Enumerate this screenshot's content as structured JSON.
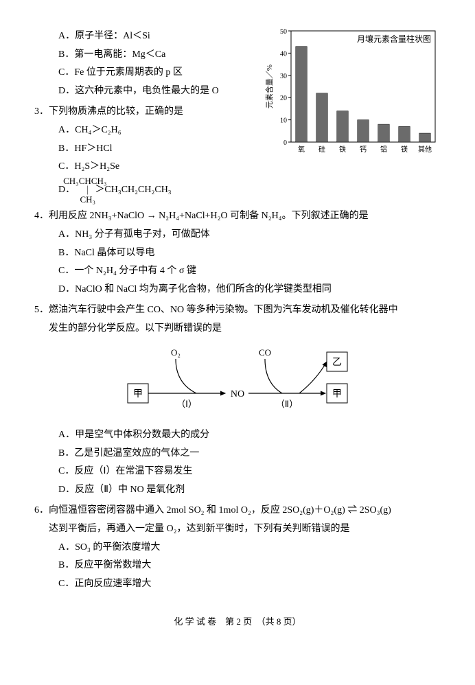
{
  "q2_tail": {
    "A": "A．原子半径：Al＜Si",
    "B": "B．第一电离能：Mg＜Ca",
    "C": "C．Fe 位于元素周期表的 p 区",
    "D": "D．这六种元素中，电负性最大的是 O"
  },
  "q3": {
    "stem_num": "3．",
    "stem": "下列物质沸点的比较，正确的是",
    "A": "A．CH₄＞C₂H₆",
    "B": "B．HF＞HCl",
    "C": "C．H₂S＞H₂Se",
    "D_prefix": "D．",
    "D_top": "CH₃CHCH₃",
    "D_mid": "｜",
    "D_bot": "CH₃",
    "D_right": "＞CH₃CH₂CH₂CH₃"
  },
  "q4": {
    "stem_num": "4．",
    "stem": "利用反应 2NH₃+NaClO → N₂H₄+NaCl+H₂O 可制备 N₂H₄。下列叙述正确的是",
    "A": "A．NH₃ 分子有孤电子对，可做配体",
    "B": "B．NaCl 晶体可以导电",
    "C": "C．一个 N₂H₄ 分子中有 4 个 σ 键",
    "D": "D．NaClO 和 NaCl 均为离子化合物，他们所含的化学键类型相同"
  },
  "q5": {
    "stem_num": "5．",
    "stem1": "燃油汽车行驶中会产生 CO、NO 等多种污染物。下图为汽车发动机及催化转化器中",
    "stem2": "发生的部分化学反应。以下判断错误的是",
    "A": "A．甲是空气中体积分数最大的成分",
    "B": "B．乙是引起温室效应的气体之一",
    "C": "C．反应（Ⅰ）在常温下容易发生",
    "D": "D．反应（Ⅱ）中 NO 是氧化剂",
    "diagram": {
      "o2": "O₂",
      "co": "CO",
      "no": "NO",
      "jia": "甲",
      "yi": "乙",
      "r1": "（Ⅰ）",
      "r2": "（Ⅱ）"
    }
  },
  "q6": {
    "stem_num": "6．",
    "stem1": "向恒温恒容密闭容器中通入 2mol SO₂ 和 1mol O₂，反应 2SO₂(g)＋O₂(g) ⇌ 2SO₃(g)",
    "stem2": "达到平衡后，再通入一定量 O₂，达到新平衡时，下列有关判断错误的是",
    "A": "A．SO₃ 的平衡浓度增大",
    "B": "B．反应平衡常数增大",
    "C": "C．正向反应速率增大"
  },
  "chart": {
    "title": "月壤元素含量柱状图",
    "ylabel": "元素含量／%",
    "categories": [
      "氧",
      "硅",
      "铁",
      "钙",
      "铝",
      "镁",
      "其他"
    ],
    "values": [
      43,
      22,
      14,
      10,
      8,
      7,
      4
    ],
    "ylim": [
      0,
      50
    ],
    "ytick_step": 10,
    "bar_color": "#6b6b6b",
    "axis_color": "#000000",
    "bg": "#ffffff",
    "title_fontsize": 12,
    "label_fontsize": 11,
    "tick_fontsize": 10
  },
  "footer": "化 学 试 卷　第 2 页　（共 8 页）"
}
